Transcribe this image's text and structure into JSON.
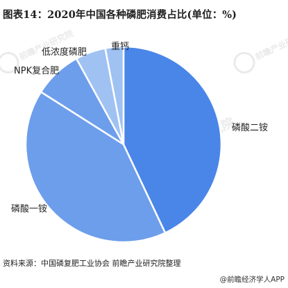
{
  "title": "图表14：2020年中国各种磷肥消费占比(单位：%)",
  "chart_data": {
    "type": "pie",
    "title": "图表14：2020年中国各种磷肥消费占比(单位：%)",
    "unit": "%",
    "slices": [
      {
        "label": "磷酸二铵",
        "value": 43,
        "color": "#4a86e8"
      },
      {
        "label": "磷酸一铵",
        "value": 41,
        "color": "#6d9eeb"
      },
      {
        "label": "NPK复合肥",
        "value": 8,
        "color": "#6d9eeb"
      },
      {
        "label": "低浓度磷肥",
        "value": 5,
        "color": "#9fc2f3"
      },
      {
        "label": "重钙",
        "value": 3,
        "color": "#9fc2f3"
      }
    ],
    "legend": "none",
    "grid": false
  },
  "source": "资料来源：中国磷复肥工业协会 前瞻产业研究院整理",
  "credit": "@前瞻经济学人APP",
  "watermark": {
    "text": "前瞻产业研究院",
    "color": "#d9d9d9"
  }
}
